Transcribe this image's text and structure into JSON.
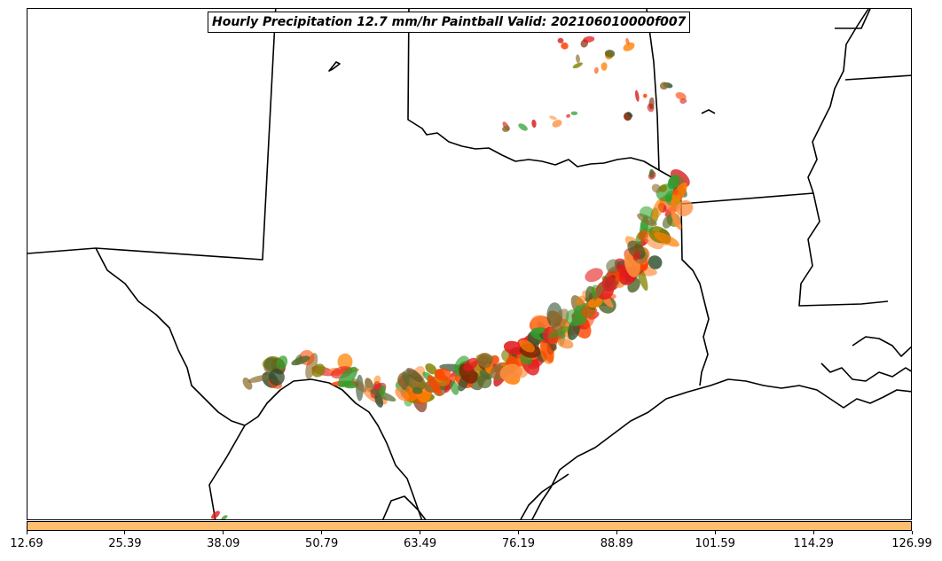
{
  "title": "Hourly Precipitation 12.7 mm/hr Paintball Valid: 202106010000f007",
  "colorbar": {
    "color": "#fdbf6f",
    "ticks": [
      "12.69",
      "25.39",
      "38.09",
      "50.79",
      "63.49",
      "76.19",
      "88.89",
      "101.59",
      "114.29",
      "126.99"
    ]
  },
  "member_colors": [
    "#e31a1c",
    "#ff7f00",
    "#fd8d3c",
    "#33a02c",
    "#2ca02c",
    "#808000",
    "#7f2704",
    "#2f4f2f",
    "#8c6d31",
    "#d62728",
    "#ff4500",
    "#556b2f"
  ],
  "map": {
    "region": "Southern Plains / Texas",
    "boundaries": [
      "state-borders",
      "coastline"
    ]
  }
}
